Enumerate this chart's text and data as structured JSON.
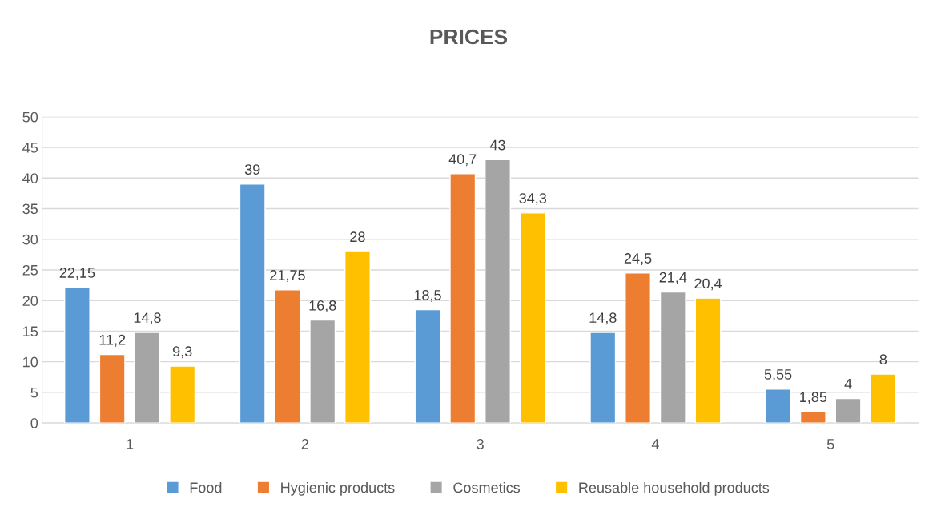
{
  "chart_data": {
    "type": "bar",
    "title": "PRICES",
    "categories": [
      "1",
      "2",
      "3",
      "4",
      "5"
    ],
    "series": [
      {
        "name": "Food",
        "color": "#5b9bd5",
        "values": [
          22.15,
          39,
          18.5,
          14.8,
          5.55
        ],
        "value_labels": [
          "22,15",
          "39",
          "18,5",
          "14,8",
          "5,55"
        ]
      },
      {
        "name": "Hygienic products",
        "color": "#ed7d31",
        "values": [
          11.2,
          21.75,
          40.7,
          24.5,
          1.85
        ],
        "value_labels": [
          "11,2",
          "21,75",
          "40,7",
          "24,5",
          "1,85"
        ]
      },
      {
        "name": "Cosmetics",
        "color": "#a5a5a5",
        "values": [
          14.8,
          16.8,
          43,
          21.4,
          4
        ],
        "value_labels": [
          "14,8",
          "16,8",
          "43",
          "21,4",
          "4"
        ]
      },
      {
        "name": "Reusable household products",
        "color": "#ffc000",
        "values": [
          9.3,
          28,
          34.3,
          20.4,
          8
        ],
        "value_labels": [
          "9,3",
          "28",
          "34,3",
          "20,4",
          "8"
        ]
      }
    ],
    "ylim": [
      0,
      50
    ],
    "yticks": [
      0,
      5,
      10,
      15,
      20,
      25,
      30,
      35,
      40,
      45,
      50
    ],
    "grid": "y",
    "legend": "bottom"
  }
}
